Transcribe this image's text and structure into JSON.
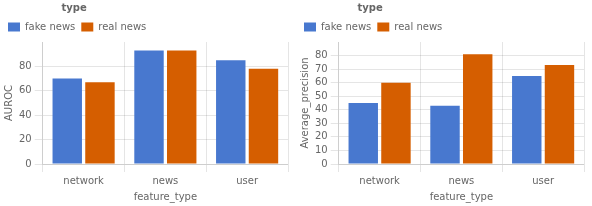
{
  "chart_data": [
    {
      "type": "bar",
      "categories": [
        "network",
        "news",
        "user"
      ],
      "series": [
        {
          "name": "fake news",
          "color": "#4878cf",
          "values": [
            70,
            93,
            85
          ]
        },
        {
          "name": "real news",
          "color": "#d55e00",
          "values": [
            67,
            93,
            78
          ]
        }
      ],
      "xlabel": "feature_type",
      "ylabel": "AUROC",
      "legend_title": "type",
      "legend": "top-left",
      "ylim": [
        0,
        100
      ],
      "yticks": [
        0,
        20,
        40,
        60,
        80
      ],
      "grid": true
    },
    {
      "type": "bar",
      "categories": [
        "network",
        "news",
        "user"
      ],
      "series": [
        {
          "name": "fake news",
          "color": "#4878cf",
          "values": [
            45,
            43,
            65
          ]
        },
        {
          "name": "real news",
          "color": "#d55e00",
          "values": [
            60,
            81,
            73
          ]
        }
      ],
      "xlabel": "feature_type",
      "ylabel": "Average_precision",
      "legend_title": "type",
      "legend": "top-left",
      "ylim": [
        0,
        90
      ],
      "yticks": [
        0,
        10,
        20,
        30,
        40,
        50,
        60,
        70,
        80
      ],
      "grid": true
    }
  ]
}
